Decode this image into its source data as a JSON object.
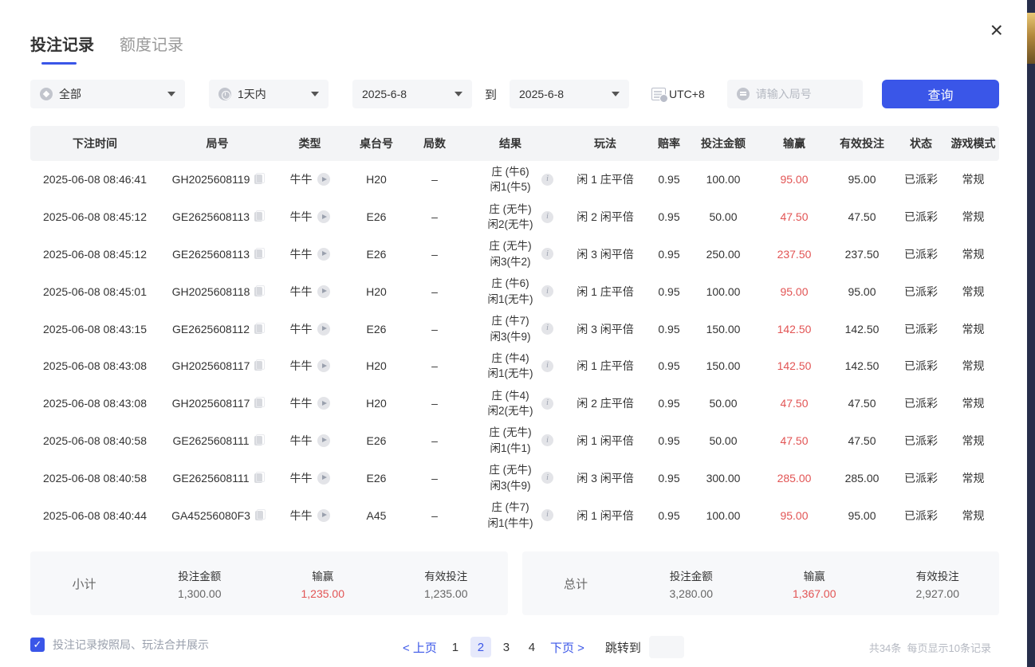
{
  "colors": {
    "accent": "#3a56e8",
    "red": "#e25454"
  },
  "tabs": [
    {
      "label": "投注记录",
      "active": true
    },
    {
      "label": "额度记录",
      "active": false
    }
  ],
  "close_label": "×",
  "filters": {
    "type_select": "全部",
    "time_select": "1天内",
    "date_from": "2025-6-8",
    "to_label": "到",
    "date_to": "2025-6-8",
    "timezone": "UTC+8",
    "round_placeholder": "请输入局号",
    "search_label": "查询"
  },
  "table": {
    "headers": [
      "下注时间",
      "局号",
      "类型",
      "桌台号",
      "局数",
      "结果",
      "玩法",
      "赔率",
      "投注金额",
      "输赢",
      "有效投注",
      "状态",
      "游戏模式"
    ],
    "rows": [
      {
        "time": "2025-06-08 08:46:41",
        "round": "GH2025608119",
        "type": "牛牛",
        "table_no": "H20",
        "shoe": "–",
        "result1": "庄 (牛6)",
        "result2": "闲1(牛5)",
        "play": "闲 1 庄平倍",
        "odds": "0.95",
        "bet": "100.00",
        "win": "95.00",
        "valid": "95.00",
        "status": "已派彩",
        "mode": "常规"
      },
      {
        "time": "2025-06-08 08:45:12",
        "round": "GE2625608113",
        "type": "牛牛",
        "table_no": "E26",
        "shoe": "–",
        "result1": "庄 (无牛)",
        "result2": "闲2(无牛)",
        "play": "闲 2 闲平倍",
        "odds": "0.95",
        "bet": "50.00",
        "win": "47.50",
        "valid": "47.50",
        "status": "已派彩",
        "mode": "常规"
      },
      {
        "time": "2025-06-08 08:45:12",
        "round": "GE2625608113",
        "type": "牛牛",
        "table_no": "E26",
        "shoe": "–",
        "result1": "庄 (无牛)",
        "result2": "闲3(牛2)",
        "play": "闲 3 闲平倍",
        "odds": "0.95",
        "bet": "250.00",
        "win": "237.50",
        "valid": "237.50",
        "status": "已派彩",
        "mode": "常规"
      },
      {
        "time": "2025-06-08 08:45:01",
        "round": "GH2025608118",
        "type": "牛牛",
        "table_no": "H20",
        "shoe": "–",
        "result1": "庄 (牛6)",
        "result2": "闲1(无牛)",
        "play": "闲 1 庄平倍",
        "odds": "0.95",
        "bet": "100.00",
        "win": "95.00",
        "valid": "95.00",
        "status": "已派彩",
        "mode": "常规"
      },
      {
        "time": "2025-06-08 08:43:15",
        "round": "GE2625608112",
        "type": "牛牛",
        "table_no": "E26",
        "shoe": "–",
        "result1": "庄 (牛7)",
        "result2": "闲3(牛9)",
        "play": "闲 3 闲平倍",
        "odds": "0.95",
        "bet": "150.00",
        "win": "142.50",
        "valid": "142.50",
        "status": "已派彩",
        "mode": "常规"
      },
      {
        "time": "2025-06-08 08:43:08",
        "round": "GH2025608117",
        "type": "牛牛",
        "table_no": "H20",
        "shoe": "–",
        "result1": "庄 (牛4)",
        "result2": "闲1(无牛)",
        "play": "闲 1 庄平倍",
        "odds": "0.95",
        "bet": "150.00",
        "win": "142.50",
        "valid": "142.50",
        "status": "已派彩",
        "mode": "常规"
      },
      {
        "time": "2025-06-08 08:43:08",
        "round": "GH2025608117",
        "type": "牛牛",
        "table_no": "H20",
        "shoe": "–",
        "result1": "庄 (牛4)",
        "result2": "闲2(无牛)",
        "play": "闲 2 庄平倍",
        "odds": "0.95",
        "bet": "50.00",
        "win": "47.50",
        "valid": "47.50",
        "status": "已派彩",
        "mode": "常规"
      },
      {
        "time": "2025-06-08 08:40:58",
        "round": "GE2625608111",
        "type": "牛牛",
        "table_no": "E26",
        "shoe": "–",
        "result1": "庄 (无牛)",
        "result2": "闲1(牛1)",
        "play": "闲 1 闲平倍",
        "odds": "0.95",
        "bet": "50.00",
        "win": "47.50",
        "valid": "47.50",
        "status": "已派彩",
        "mode": "常规"
      },
      {
        "time": "2025-06-08 08:40:58",
        "round": "GE2625608111",
        "type": "牛牛",
        "table_no": "E26",
        "shoe": "–",
        "result1": "庄 (无牛)",
        "result2": "闲3(牛9)",
        "play": "闲 3 闲平倍",
        "odds": "0.95",
        "bet": "300.00",
        "win": "285.00",
        "valid": "285.00",
        "status": "已派彩",
        "mode": "常规"
      },
      {
        "time": "2025-06-08 08:40:44",
        "round": "GA45256080F3",
        "type": "牛牛",
        "table_no": "A45",
        "shoe": "–",
        "result1": "庄 (牛7)",
        "result2": "闲1(牛牛)",
        "play": "闲 1 闲平倍",
        "odds": "0.95",
        "bet": "100.00",
        "win": "95.00",
        "valid": "95.00",
        "status": "已派彩",
        "mode": "常规"
      }
    ]
  },
  "subtotal": {
    "label": "小计",
    "bet_label": "投注金额",
    "bet": "1,300.00",
    "win_label": "输赢",
    "win": "1,235.00",
    "valid_label": "有效投注",
    "valid": "1,235.00"
  },
  "total": {
    "label": "总计",
    "bet_label": "投注金额",
    "bet": "3,280.00",
    "win_label": "输赢",
    "win": "1,367.00",
    "valid_label": "有效投注",
    "valid": "2,927.00"
  },
  "footer": {
    "merge_label": "投注记录按照局、玩法合并展示",
    "checkbox_checked": "✓",
    "prev_label": "< 上页",
    "pages": [
      "1",
      "2",
      "3",
      "4"
    ],
    "active_page": "2",
    "next_label": "下页 >",
    "jump_label": "跳转到",
    "total_count": "共34条",
    "page_size": "每页显示10条记录"
  }
}
